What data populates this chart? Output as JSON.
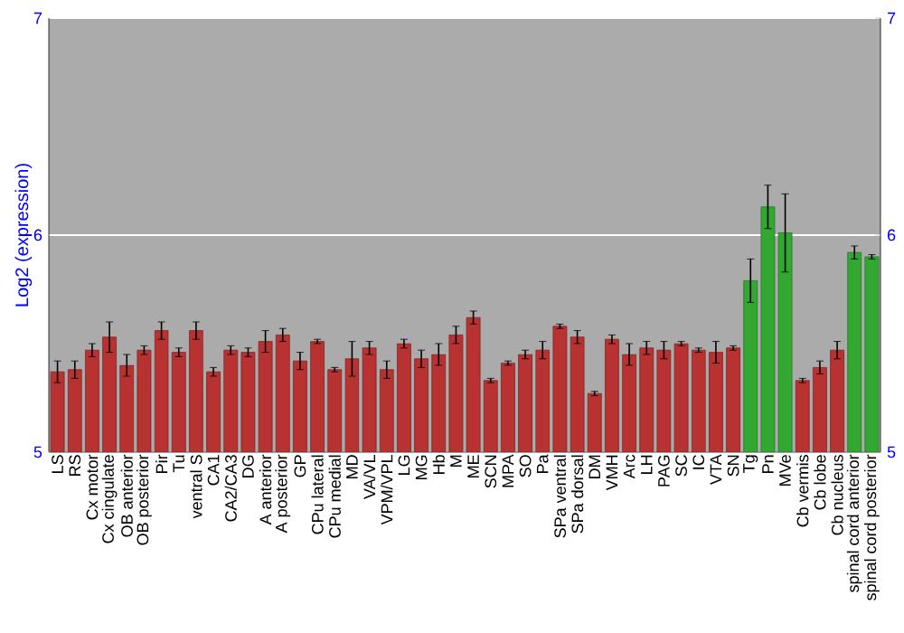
{
  "chart_data": {
    "type": "bar",
    "ylabel": "Log2 (expression)",
    "categories": [
      "LS",
      "RS",
      "Cx motor",
      "Cx cingulate",
      "OB anterior",
      "OB posterior",
      "Pir",
      "Tu",
      "ventral S",
      "CA1",
      "CA2/CA3",
      "DG",
      "A anterior",
      "A posterior",
      "GP",
      "CPu lateral",
      "CPu medial",
      "MD",
      "VA/VL",
      "VPM/VPL",
      "LG",
      "MG",
      "Hb",
      "M",
      "ME",
      "SCN",
      "MPA",
      "SO",
      "Pa",
      "SPa ventral",
      "SPa dorsal",
      "DM",
      "VMH",
      "Arc",
      "LH",
      "PAG",
      "SC",
      "IC",
      "VTA",
      "SN",
      "Tg",
      "Pn",
      "MVe",
      "Cb vermis",
      "Cb lobe",
      "Cb nucleus",
      "spinal cord anterior",
      "spinal cord posterior"
    ],
    "values": [
      5.37,
      5.38,
      5.47,
      5.53,
      5.4,
      5.47,
      5.56,
      5.46,
      5.56,
      5.37,
      5.47,
      5.46,
      5.51,
      5.54,
      5.42,
      5.51,
      5.38,
      5.43,
      5.48,
      5.38,
      5.5,
      5.43,
      5.45,
      5.54,
      5.62,
      5.33,
      5.41,
      5.45,
      5.47,
      5.58,
      5.53,
      5.27,
      5.52,
      5.45,
      5.48,
      5.47,
      5.5,
      5.47,
      5.46,
      5.48,
      5.79,
      6.13,
      6.01,
      5.33,
      5.39,
      5.47,
      5.92,
      5.9
    ],
    "errors": [
      0.05,
      0.04,
      0.03,
      0.07,
      0.05,
      0.02,
      0.04,
      0.02,
      0.04,
      0.02,
      0.02,
      0.02,
      0.05,
      0.03,
      0.04,
      0.01,
      0.01,
      0.08,
      0.03,
      0.04,
      0.02,
      0.04,
      0.05,
      0.04,
      0.03,
      0.01,
      0.01,
      0.02,
      0.04,
      0.01,
      0.03,
      0.01,
      0.02,
      0.05,
      0.03,
      0.04,
      0.01,
      0.01,
      0.05,
      0.01,
      0.1,
      0.1,
      0.18,
      0.01,
      0.03,
      0.04,
      0.03,
      0.01
    ],
    "colors": [
      "#b83232",
      "#b83232",
      "#b83232",
      "#b83232",
      "#b83232",
      "#b83232",
      "#b83232",
      "#b83232",
      "#b83232",
      "#b83232",
      "#b83232",
      "#b83232",
      "#b83232",
      "#b83232",
      "#b83232",
      "#b83232",
      "#b83232",
      "#b83232",
      "#b83232",
      "#b83232",
      "#b83232",
      "#b83232",
      "#b83232",
      "#b83232",
      "#b83232",
      "#b83232",
      "#b83232",
      "#b83232",
      "#b83232",
      "#b83232",
      "#b83232",
      "#b83232",
      "#b83232",
      "#b83232",
      "#b83232",
      "#b83232",
      "#b83232",
      "#b83232",
      "#b83232",
      "#b83232",
      "#32a832",
      "#32a832",
      "#32a832",
      "#b83232",
      "#b83232",
      "#b83232",
      "#32a832",
      "#32a832"
    ],
    "ylim": [
      5,
      7
    ],
    "yticks": [
      5,
      6,
      7
    ],
    "y2lim": [
      5,
      7
    ],
    "y2ticks": [
      5,
      6,
      7
    ],
    "grid": "y"
  }
}
